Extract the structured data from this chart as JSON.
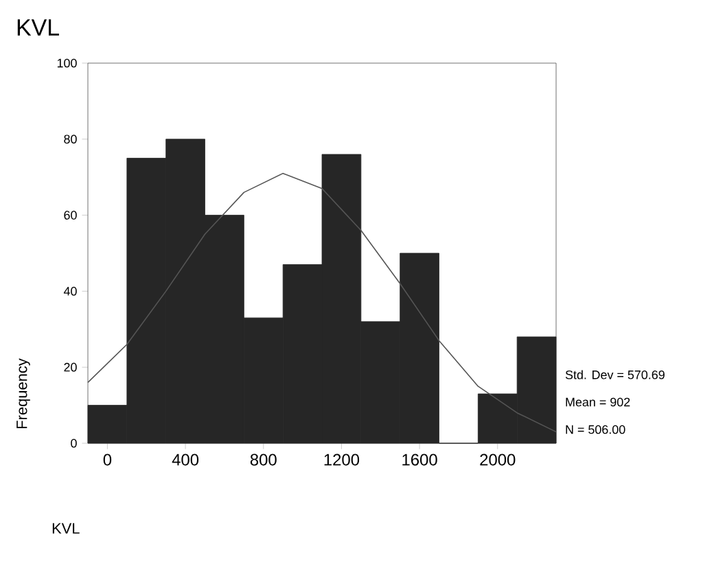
{
  "chart_data": {
    "type": "histogram",
    "title": "KVL",
    "xlabel": "KVL",
    "ylabel": "Frequency",
    "bins": [
      -100,
      100,
      300,
      500,
      700,
      900,
      1100,
      1300,
      1500,
      1700,
      1900,
      2100,
      2300
    ],
    "values": [
      10,
      75,
      80,
      60,
      33,
      47,
      76,
      32,
      50,
      0,
      13,
      28
    ],
    "color": "#262626",
    "series": [
      {
        "type": "line",
        "color": "#555555",
        "x": [
          -100,
          100,
          300,
          500,
          700,
          900,
          1100,
          1300,
          1500,
          1700,
          1900,
          2100,
          2300
        ],
        "values": [
          16,
          26,
          40,
          55,
          66,
          71,
          67,
          56,
          42,
          27,
          15,
          8,
          3
        ]
      }
    ],
    "xlim": [
      -100,
      2300
    ],
    "ylim": [
      0,
      100
    ],
    "xticks": [
      0,
      400,
      800,
      1200,
      1600,
      2000
    ],
    "yticks": [
      0,
      20,
      40,
      60,
      80,
      100
    ],
    "annotations": [
      "Std. Dev = 570.69",
      "Mean = 902",
      "N = 506.00"
    ]
  }
}
